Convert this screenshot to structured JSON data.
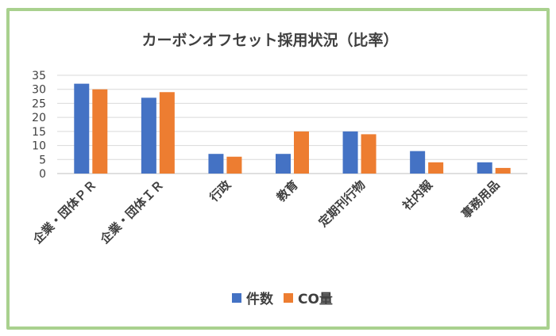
{
  "chart_data": {
    "type": "bar",
    "title": "カーボンオフセット採用状況（比率）",
    "categories": [
      "企業・団体ＰＲ",
      "企業・団体ＩＲ",
      "行政",
      "教育",
      "定期刊行物",
      "社内報",
      "事務用品"
    ],
    "series": [
      {
        "name": "件数",
        "values": [
          32,
          27,
          7,
          7,
          15,
          8,
          4
        ]
      },
      {
        "name": "CO量",
        "values": [
          30,
          29,
          6,
          15,
          14,
          4,
          2
        ]
      }
    ],
    "ylim": [
      0,
      35
    ],
    "yticks": [
      0,
      5,
      10,
      15,
      20,
      25,
      30,
      35
    ],
    "grid": true,
    "legend_position": "bottom",
    "colors": {
      "件数": "#4472c4",
      "CO量": "#ed7d31",
      "border": "#a9d18e",
      "grid": "#d9d9d9",
      "text": "#404040"
    }
  }
}
